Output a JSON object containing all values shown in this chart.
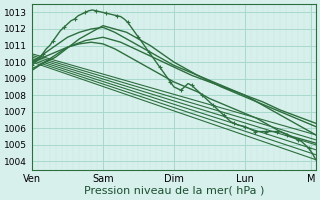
{
  "background_color": "#d8f0ec",
  "plot_bg_color": "#d8f0ec",
  "grid_color_major": "#a8d8cc",
  "grid_color_minor": "#c0e8e0",
  "line_color": "#2d6e3e",
  "yticks": [
    1004,
    1005,
    1006,
    1007,
    1008,
    1009,
    1010,
    1011,
    1012,
    1013
  ],
  "ylim": [
    1003.5,
    1013.5
  ],
  "xlabel": "Pression niveau de la mer( hPa )",
  "xlabel_fontsize": 8,
  "day_labels": [
    "Ven",
    "Sam",
    "Dim",
    "Lun",
    "M"
  ],
  "day_positions": [
    0,
    60,
    120,
    180,
    236
  ],
  "xlim": [
    0,
    240
  ],
  "series": [
    {
      "points": [
        [
          0,
          1009.8
        ],
        [
          3,
          1010.0
        ],
        [
          6,
          1010.2
        ],
        [
          9,
          1010.5
        ],
        [
          12,
          1010.8
        ],
        [
          15,
          1011.0
        ],
        [
          18,
          1011.3
        ],
        [
          21,
          1011.6
        ],
        [
          24,
          1011.9
        ],
        [
          27,
          1012.1
        ],
        [
          30,
          1012.3
        ],
        [
          33,
          1012.5
        ],
        [
          36,
          1012.6
        ],
        [
          39,
          1012.8
        ],
        [
          42,
          1012.9
        ],
        [
          45,
          1013.0
        ],
        [
          48,
          1013.1
        ],
        [
          51,
          1013.15
        ],
        [
          54,
          1013.1
        ],
        [
          57,
          1013.05
        ],
        [
          60,
          1013.0
        ],
        [
          63,
          1012.95
        ],
        [
          66,
          1012.9
        ],
        [
          69,
          1012.85
        ],
        [
          72,
          1012.8
        ],
        [
          75,
          1012.75
        ],
        [
          78,
          1012.6
        ],
        [
          81,
          1012.4
        ],
        [
          84,
          1012.1
        ],
        [
          87,
          1011.8
        ],
        [
          90,
          1011.5
        ],
        [
          93,
          1011.2
        ],
        [
          96,
          1010.9
        ],
        [
          99,
          1010.6
        ],
        [
          102,
          1010.3
        ],
        [
          105,
          1010.0
        ],
        [
          108,
          1009.7
        ],
        [
          111,
          1009.4
        ],
        [
          114,
          1009.1
        ],
        [
          117,
          1008.8
        ],
        [
          120,
          1008.5
        ],
        [
          123,
          1008.4
        ],
        [
          126,
          1008.3
        ],
        [
          129,
          1008.5
        ],
        [
          132,
          1008.7
        ],
        [
          135,
          1008.6
        ],
        [
          138,
          1008.4
        ],
        [
          141,
          1008.2
        ],
        [
          144,
          1008.0
        ],
        [
          147,
          1007.8
        ],
        [
          150,
          1007.6
        ],
        [
          153,
          1007.4
        ],
        [
          156,
          1007.2
        ],
        [
          159,
          1007.0
        ],
        [
          162,
          1006.8
        ],
        [
          165,
          1006.6
        ],
        [
          168,
          1006.4
        ],
        [
          171,
          1006.3
        ],
        [
          174,
          1006.2
        ],
        [
          177,
          1006.15
        ],
        [
          180,
          1006.1
        ],
        [
          183,
          1006.0
        ],
        [
          186,
          1005.9
        ],
        [
          189,
          1005.8
        ],
        [
          192,
          1005.8
        ],
        [
          195,
          1005.8
        ],
        [
          198,
          1005.8
        ],
        [
          201,
          1005.8
        ],
        [
          204,
          1005.8
        ],
        [
          207,
          1005.8
        ],
        [
          210,
          1005.8
        ],
        [
          213,
          1005.7
        ],
        [
          216,
          1005.6
        ],
        [
          219,
          1005.5
        ],
        [
          222,
          1005.4
        ],
        [
          225,
          1005.3
        ],
        [
          228,
          1005.2
        ],
        [
          231,
          1005.0
        ],
        [
          234,
          1004.8
        ],
        [
          237,
          1004.5
        ],
        [
          240,
          1004.1
        ]
      ],
      "style": "dotted_marker",
      "marker": "+",
      "linewidth": 1.0
    },
    {
      "points": [
        [
          0,
          1010.0
        ],
        [
          240,
          1004.1
        ]
      ],
      "style": "line",
      "linewidth": 0.8
    },
    {
      "points": [
        [
          0,
          1010.1
        ],
        [
          240,
          1004.4
        ]
      ],
      "style": "line",
      "linewidth": 0.8
    },
    {
      "points": [
        [
          0,
          1010.2
        ],
        [
          240,
          1004.7
        ]
      ],
      "style": "line",
      "linewidth": 0.8
    },
    {
      "points": [
        [
          0,
          1010.3
        ],
        [
          240,
          1005.0
        ]
      ],
      "style": "line",
      "linewidth": 0.8
    },
    {
      "points": [
        [
          0,
          1010.4
        ],
        [
          240,
          1005.3
        ]
      ],
      "style": "line",
      "linewidth": 0.8
    },
    {
      "points": [
        [
          0,
          1010.5
        ],
        [
          240,
          1005.6
        ]
      ],
      "style": "line",
      "linewidth": 0.8
    },
    {
      "points": [
        [
          0,
          1010.0
        ],
        [
          10,
          1010.5
        ],
        [
          20,
          1011.0
        ],
        [
          30,
          1011.5
        ],
        [
          40,
          1011.8
        ],
        [
          50,
          1012.0
        ],
        [
          60,
          1012.1
        ],
        [
          70,
          1011.8
        ],
        [
          80,
          1011.4
        ],
        [
          90,
          1011.0
        ],
        [
          100,
          1010.6
        ],
        [
          110,
          1010.2
        ],
        [
          120,
          1009.8
        ],
        [
          130,
          1009.5
        ],
        [
          140,
          1009.2
        ],
        [
          150,
          1008.9
        ],
        [
          160,
          1008.6
        ],
        [
          170,
          1008.3
        ],
        [
          180,
          1008.0
        ],
        [
          190,
          1007.6
        ],
        [
          200,
          1007.2
        ],
        [
          210,
          1006.8
        ],
        [
          220,
          1006.4
        ],
        [
          230,
          1006.0
        ],
        [
          240,
          1005.6
        ]
      ],
      "style": "line",
      "linewidth": 1.0
    },
    {
      "points": [
        [
          0,
          1010.0
        ],
        [
          10,
          1010.3
        ],
        [
          20,
          1010.6
        ],
        [
          30,
          1010.9
        ],
        [
          40,
          1011.1
        ],
        [
          50,
          1011.2
        ],
        [
          60,
          1011.1
        ],
        [
          70,
          1010.8
        ],
        [
          80,
          1010.4
        ],
        [
          90,
          1010.0
        ],
        [
          100,
          1009.6
        ],
        [
          110,
          1009.2
        ],
        [
          120,
          1008.8
        ],
        [
          130,
          1008.5
        ],
        [
          140,
          1008.2
        ],
        [
          150,
          1007.8
        ],
        [
          160,
          1007.5
        ],
        [
          170,
          1007.2
        ],
        [
          180,
          1006.9
        ],
        [
          190,
          1006.6
        ],
        [
          200,
          1006.2
        ],
        [
          210,
          1005.8
        ],
        [
          220,
          1005.5
        ],
        [
          230,
          1005.3
        ],
        [
          240,
          1005.1
        ]
      ],
      "style": "line",
      "linewidth": 1.0
    },
    {
      "points": [
        [
          0,
          1009.5
        ],
        [
          15,
          1010.2
        ],
        [
          30,
          1010.9
        ],
        [
          45,
          1011.3
        ],
        [
          60,
          1011.5
        ],
        [
          75,
          1011.2
        ],
        [
          90,
          1010.7
        ],
        [
          105,
          1010.2
        ],
        [
          120,
          1009.7
        ],
        [
          135,
          1009.2
        ],
        [
          150,
          1008.8
        ],
        [
          165,
          1008.4
        ],
        [
          180,
          1008.0
        ],
        [
          195,
          1007.6
        ],
        [
          210,
          1007.1
        ],
        [
          225,
          1006.7
        ],
        [
          240,
          1006.3
        ]
      ],
      "style": "line",
      "linewidth": 1.0
    },
    {
      "points": [
        [
          0,
          1009.6
        ],
        [
          20,
          1010.3
        ],
        [
          40,
          1011.4
        ],
        [
          60,
          1012.2
        ],
        [
          80,
          1011.8
        ],
        [
          100,
          1011.0
        ],
        [
          120,
          1010.0
        ],
        [
          140,
          1009.2
        ],
        [
          160,
          1008.5
        ],
        [
          180,
          1007.9
        ],
        [
          200,
          1007.3
        ],
        [
          220,
          1006.7
        ],
        [
          240,
          1006.1
        ]
      ],
      "style": "line",
      "linewidth": 1.0
    }
  ]
}
